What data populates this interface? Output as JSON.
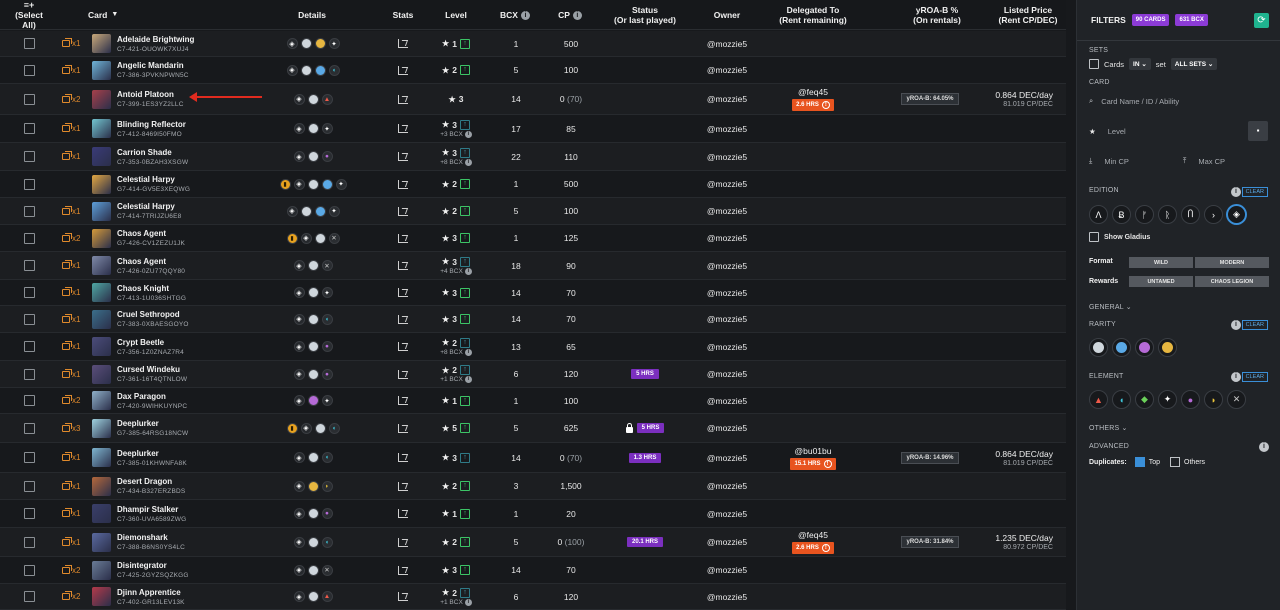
{
  "header": {
    "select_all": "(Select All)",
    "card": "Card",
    "details": "Details",
    "stats": "Stats",
    "level": "Level",
    "bcx": "BCX",
    "cp": "CP",
    "status": "Status",
    "status_sub": "(Or last played)",
    "owner": "Owner",
    "delegated": "Delegated To",
    "delegated_sub": "(Rent remaining)",
    "yroa": "yROA-B %",
    "yroa_sub": "(On rentals)",
    "listed": "Listed Price",
    "listed_sub": "(Rent CP/DEC)"
  },
  "colors": {
    "accent": "#8c3bd6",
    "rent": "#e8541f",
    "upgrade": "#3cc466",
    "teal": "#1fb38f"
  },
  "rows": [
    {
      "dup": "x1",
      "name": "Adelaide Brightwing",
      "id": "C7-421-OUOWK7XUJ4",
      "thumb": "#c9a97a",
      "dets": [
        "edition",
        "r-common",
        "r-legend",
        "el-life"
      ],
      "level": "1",
      "up": "up",
      "bcx": "1",
      "cp": "500",
      "owner": "@mozzie5"
    },
    {
      "dup": "x1",
      "name": "Angelic Mandarin",
      "id": "C7-386-3PVKNPWN5C",
      "thumb": "#6fb4d8",
      "dets": [
        "edition",
        "r-common",
        "r-rare",
        "el-water"
      ],
      "level": "2",
      "up": "up",
      "bcx": "5",
      "cp": "100",
      "owner": "@mozzie5"
    },
    {
      "dup": "x2",
      "name": "Antoid Platoon",
      "id": "C7-399-1ES3YZ2LLC",
      "thumb": "#a7404a",
      "dets": [
        "edition",
        "r-common",
        "el-fire"
      ],
      "level": "3",
      "up": "",
      "bcx": "14",
      "cp": "0",
      "cp_muted": "(70)",
      "owner": "@mozzie5",
      "deleg": "@feq45",
      "rent": "2.6 HRS",
      "yroa": "yROA-B: 64.05%",
      "price": "0.864 DEC/day",
      "price_sub": "81.019 CP/DEC"
    },
    {
      "dup": "x1",
      "name": "Blinding Reflector",
      "id": "C7-412-8469I50FMO",
      "thumb": "#73c6d0",
      "dets": [
        "edition",
        "r-common",
        "el-life"
      ],
      "level": "3",
      "up": "muted",
      "bcx_note": "+3 BCX",
      "bcx": "17",
      "cp": "85",
      "owner": "@mozzie5"
    },
    {
      "dup": "x1",
      "name": "Carrion Shade",
      "id": "C7-353-0BZAH3XSGW",
      "thumb": "#3a3b78",
      "dets": [
        "edition",
        "r-common",
        "el-death"
      ],
      "level": "3",
      "up": "muted",
      "bcx_note": "+8 BCX",
      "bcx": "22",
      "cp": "110",
      "owner": "@mozzie5"
    },
    {
      "dup": "",
      "name": "Celestial Harpy",
      "id": "G7-414-GV5E3XEQWG",
      "thumb": "#e2a742",
      "dets": [
        "foil",
        "edition",
        "r-common",
        "r-rare",
        "el-life"
      ],
      "level": "2",
      "up": "up",
      "bcx": "1",
      "cp": "500",
      "owner": "@mozzie5"
    },
    {
      "dup": "x1",
      "name": "Celestial Harpy",
      "id": "C7-414-7TRIJZU6E8",
      "thumb": "#5d9fd9",
      "dets": [
        "edition",
        "r-common",
        "r-rare",
        "el-life"
      ],
      "level": "2",
      "up": "up",
      "bcx": "5",
      "cp": "100",
      "owner": "@mozzie5"
    },
    {
      "dup": "x2",
      "name": "Chaos Agent",
      "id": "G7-426-CV1ZEZU1JK",
      "thumb": "#d59a3a",
      "dets": [
        "foil",
        "edition",
        "r-common",
        "el-neutral"
      ],
      "level": "3",
      "up": "up",
      "bcx": "1",
      "cp": "125",
      "owner": "@mozzie5"
    },
    {
      "dup": "x1",
      "name": "Chaos Agent",
      "id": "C7-426-0ZU77QQY80",
      "thumb": "#7f8aa8",
      "dets": [
        "edition",
        "r-common",
        "el-neutral"
      ],
      "level": "3",
      "up": "muted",
      "bcx_note": "+4 BCX",
      "bcx": "18",
      "cp": "90",
      "owner": "@mozzie5"
    },
    {
      "dup": "x1",
      "name": "Chaos Knight",
      "id": "C7-413-1U036SHTGG",
      "thumb": "#4fa7a3",
      "dets": [
        "edition",
        "r-common",
        "el-life"
      ],
      "level": "3",
      "up": "up",
      "bcx": "14",
      "cp": "70",
      "owner": "@mozzie5"
    },
    {
      "dup": "x1",
      "name": "Cruel Sethropod",
      "id": "C7-383-0XBAESGOYO",
      "thumb": "#3b6f8a",
      "dets": [
        "edition",
        "r-common",
        "el-water"
      ],
      "level": "3",
      "up": "up",
      "bcx": "14",
      "cp": "70",
      "owner": "@mozzie5"
    },
    {
      "dup": "x1",
      "name": "Crypt Beetle",
      "id": "C7-356-1Z0ZNAZ7R4",
      "thumb": "#4b4c7a",
      "dets": [
        "edition",
        "r-common",
        "el-death"
      ],
      "level": "2",
      "up": "muted",
      "bcx_note": "+8 BCX",
      "bcx": "13",
      "cp": "65",
      "owner": "@mozzie5"
    },
    {
      "dup": "x1",
      "name": "Cursed Windeku",
      "id": "C7-361-16T4QTNLOW",
      "thumb": "#5b4e7a",
      "dets": [
        "edition",
        "r-common",
        "el-death"
      ],
      "level": "2",
      "up": "muted",
      "bcx_note": "+1 BCX",
      "bcx": "6",
      "cp": "120",
      "owner": "@mozzie5",
      "status": "5 HRS"
    },
    {
      "dup": "x2",
      "name": "Dax Paragon",
      "id": "C7-420-9WIHKUYNPC",
      "thumb": "#8fb0c8",
      "dets": [
        "edition",
        "r-epic",
        "el-life"
      ],
      "level": "1",
      "up": "up",
      "bcx": "1",
      "cp": "100",
      "owner": "@mozzie5"
    },
    {
      "dup": "x3",
      "name": "Deeplurker",
      "id": "G7-385-64RSG18NCW",
      "thumb": "#9fd3e0",
      "dets": [
        "foil",
        "edition",
        "r-common",
        "el-water"
      ],
      "level": "5",
      "up": "up",
      "bcx": "5",
      "cp": "625",
      "owner": "@mozzie5",
      "status": "5 HRS",
      "status_lock": true
    },
    {
      "dup": "x1",
      "name": "Deeplurker",
      "id": "C7-385-01KHWNFA8K",
      "thumb": "#7fb6d0",
      "dets": [
        "edition",
        "r-common",
        "el-water"
      ],
      "level": "3",
      "up": "muted",
      "bcx": "14",
      "cp": "0",
      "cp_muted": "(70)",
      "owner": "@mozzie5",
      "status": "1.3 HRS",
      "deleg": "@bu01bu",
      "rent": "15.1 HRS",
      "yroa": "yROA-B: 14.96%",
      "price": "0.864 DEC/day",
      "price_sub": "81.019 CP/DEC"
    },
    {
      "dup": "x1",
      "name": "Desert Dragon",
      "id": "C7-434-B327ERZBDS",
      "thumb": "#b5683b",
      "dets": [
        "edition",
        "r-legend",
        "el-dragon"
      ],
      "level": "2",
      "up": "up",
      "bcx": "3",
      "cp": "1,500",
      "owner": "@mozzie5"
    },
    {
      "dup": "x1",
      "name": "Dhampir Stalker",
      "id": "C7-360-UVA6589ZWG",
      "thumb": "#3a3f6a",
      "dets": [
        "edition",
        "r-common",
        "el-death"
      ],
      "level": "1",
      "up": "up",
      "bcx": "1",
      "cp": "20",
      "owner": "@mozzie5"
    },
    {
      "dup": "x1",
      "name": "Diemonshark",
      "id": "C7-388-B6NS0YS4LC",
      "thumb": "#5a6aa0",
      "dets": [
        "edition",
        "r-common",
        "el-water"
      ],
      "level": "2",
      "up": "up",
      "bcx": "5",
      "cp": "0",
      "cp_muted": "(100)",
      "owner": "@mozzie5",
      "status": "20.1 HRS",
      "deleg": "@feq45",
      "rent": "2.6 HRS",
      "yroa": "yROA-B: 31.84%",
      "price": "1.235 DEC/day",
      "price_sub": "80.972 CP/DEC"
    },
    {
      "dup": "x2",
      "name": "Disintegrator",
      "id": "C7-425-2GYZSQZKGG",
      "thumb": "#6a7c96",
      "dets": [
        "edition",
        "r-common",
        "el-neutral"
      ],
      "level": "3",
      "up": "up",
      "bcx": "14",
      "cp": "70",
      "owner": "@mozzie5"
    },
    {
      "dup": "x2",
      "name": "Djinn Apprentice",
      "id": "C7-402-GR13LEV13K",
      "thumb": "#b53a4a",
      "dets": [
        "edition",
        "r-common",
        "el-fire"
      ],
      "level": "2",
      "up": "muted",
      "bcx_note": "+1 BCX",
      "bcx": "6",
      "cp": "120",
      "owner": "@mozzie5"
    }
  ],
  "filters": {
    "title": "FILTERS",
    "cards_pill": "90 CARDS",
    "bcx_pill": "631 BCX",
    "sets_label": "SETS",
    "cards_label": "Cards",
    "in_label": "IN",
    "set_label": "set",
    "all_sets": "ALL SETS",
    "card_label": "CARD",
    "card_placeholder": "Card Name / ID / Ability",
    "level_label": "Level",
    "min_cp": "Min CP",
    "max_cp": "Max CP",
    "edition_label": "EDITION",
    "clear": "CLEAR",
    "show_gladius": "Show Gladius",
    "format_label": "Format",
    "wild": "WILD",
    "modern": "MODERN",
    "rewards_label": "Rewards",
    "untamed": "UNTAMED",
    "chaos_legion": "CHAOS LEGION",
    "general_label": "GENERAL",
    "rarity_label": "RARITY",
    "element_label": "ELEMENT",
    "others_label": "OTHERS",
    "advanced_label": "ADVANCED",
    "duplicates_label": "Duplicates:",
    "top_label": "Top",
    "others_opt": "Others"
  }
}
